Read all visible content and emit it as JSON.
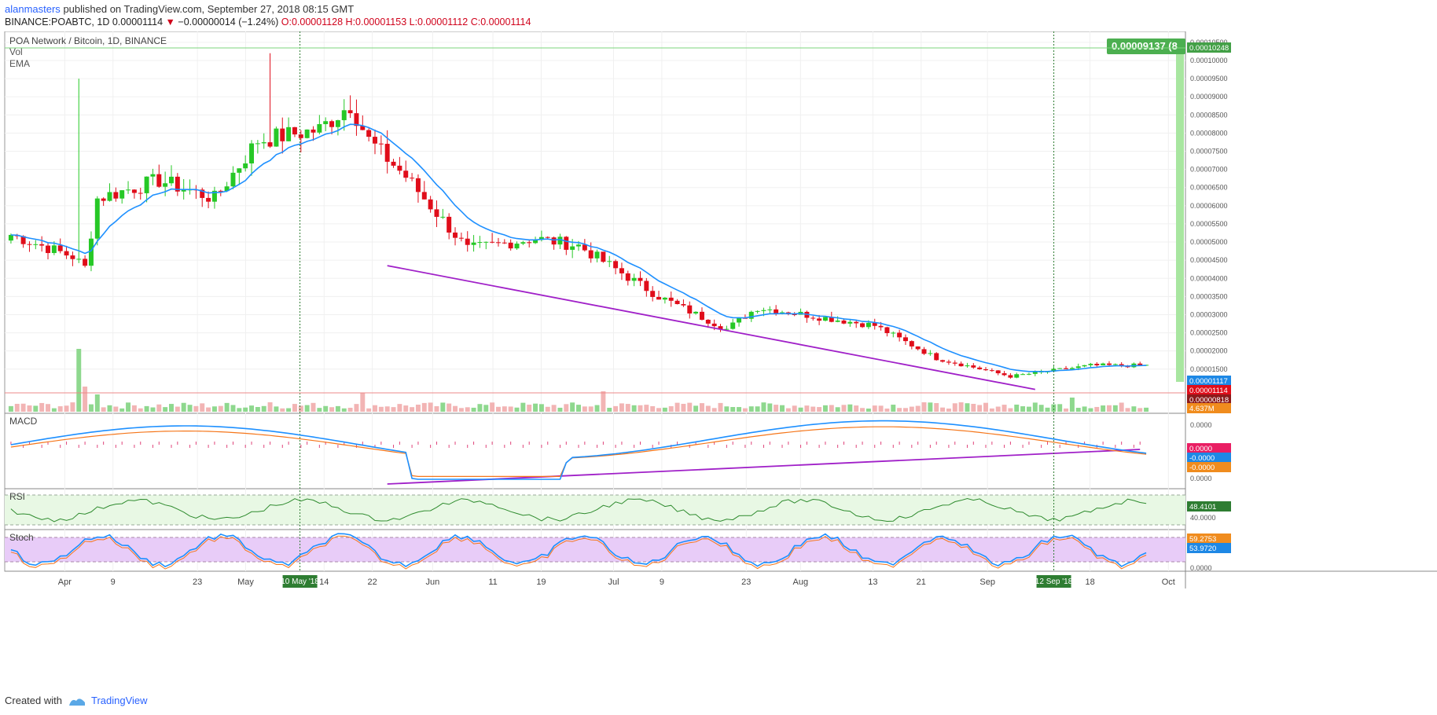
{
  "header": {
    "author": "alanmasters",
    "published_text": "published on TradingView.com, September 27, 2018 08:15 GMT",
    "symbol": "BINANCE:POABTC, 1D",
    "last": "0.00001114",
    "change_arrow": "▼",
    "change": "−0.00000014 (−1.24%)",
    "ohlc": "O:0.00001128 H:0.00001153 L:0.00001112 C:0.00001114"
  },
  "footer": {
    "created_with": "Created with",
    "brand": "TradingView"
  },
  "colors": {
    "up": "#26c826",
    "down": "#e00d1a",
    "ema": "#1e90ff",
    "trend": "#a020c8",
    "macd_signal": "#f5761a",
    "rsi_band": "#e8f8e4",
    "stoch_band": "#e8ccf8",
    "vol_up": "#8ed88e",
    "vol_down": "#f2b4b4"
  },
  "chart_data": {
    "type": "candlestick",
    "title": "POA Network / Bitcoin, 1D, BINANCE",
    "legend": [
      "Vol",
      "EMA"
    ],
    "price_axis": {
      "min": 6.3e-06,
      "max": 0.000108,
      "ticks": [
        "0.00010500",
        "0.00010000",
        "0.00009500",
        "0.00009000",
        "0.00008500",
        "0.00008000",
        "0.00007500",
        "0.00007000",
        "0.00006500",
        "0.00006000",
        "0.00005500",
        "0.00005000",
        "0.00004500",
        "0.00004000",
        "0.00003500",
        "0.00003000",
        "0.00002500",
        "0.00002000",
        "0.00001500"
      ]
    },
    "x_axis_ticks": [
      "Apr",
      "9",
      "23",
      "May",
      "14",
      "22",
      "Jun",
      "11",
      "19",
      "Jul",
      "9",
      "23",
      "Aug",
      "13",
      "21",
      "Sep",
      "18",
      "Oct"
    ],
    "markers": [
      {
        "label": "10 May '18",
        "date": "2018-05-10"
      },
      {
        "label": "12 Sep '18",
        "date": "2018-09-12"
      }
    ],
    "price_labels": {
      "measure": "0.00009137 (8",
      "high_line": "0.00010248",
      "ema": "0.00001117",
      "close": "0.00001114",
      "low_line": "0.00000818",
      "volume": "4.637M"
    },
    "panes": [
      {
        "name": "MACD",
        "ticks": [
          "0.0000",
          "-0.0000",
          "0.0000"
        ],
        "labels": [
          "0.0000",
          "-0.0000",
          "-0.0000"
        ]
      },
      {
        "name": "RSI",
        "ticks": [
          "40.0000"
        ],
        "labels": [
          "48.4101"
        ]
      },
      {
        "name": "Stoch",
        "ticks": [
          "0.0000"
        ],
        "labels": [
          "59.2753",
          "53.9720"
        ]
      }
    ]
  }
}
